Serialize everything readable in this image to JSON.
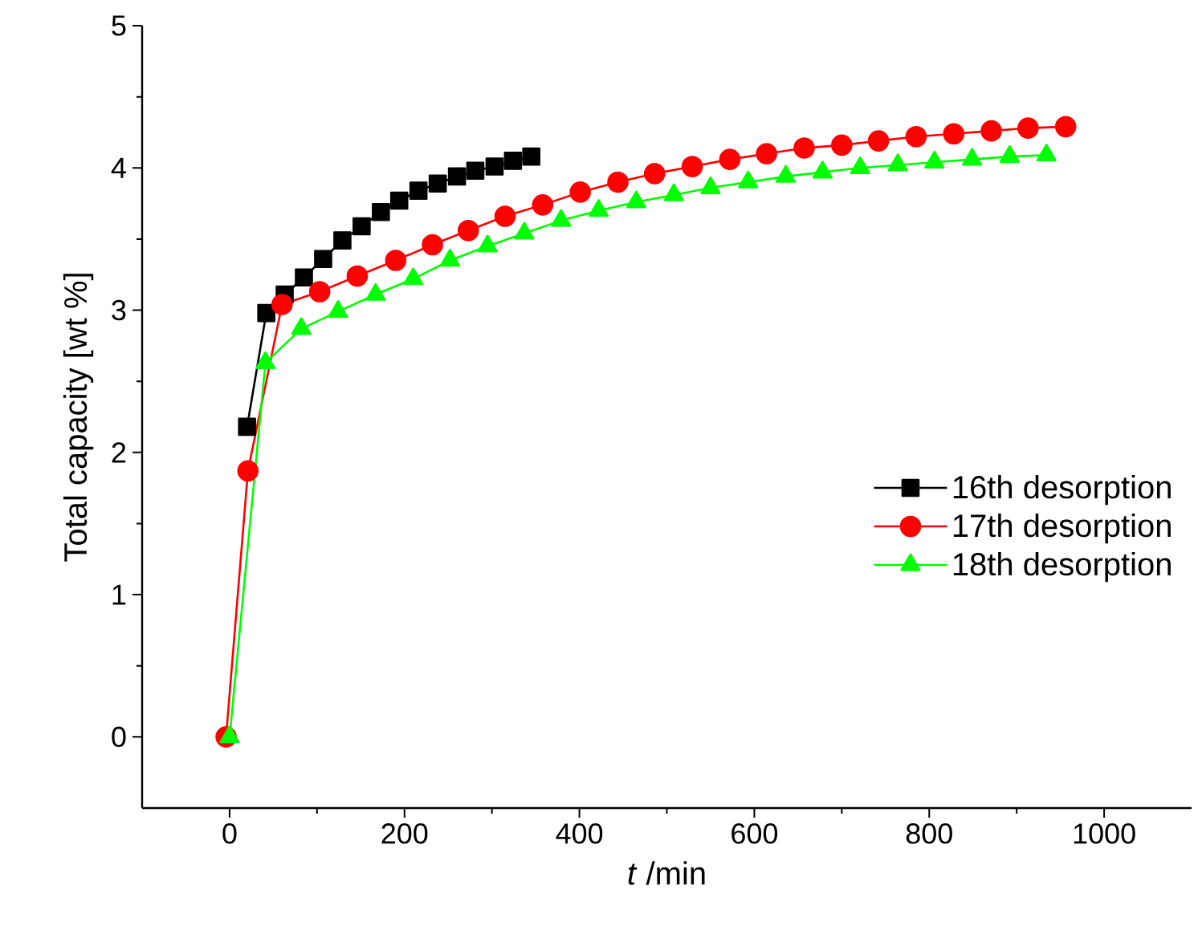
{
  "chart_data": {
    "type": "line",
    "xlabel": "*t* /min",
    "ylabel": "Total capacity [wt %]",
    "xlim": [
      -100,
      1100
    ],
    "ylim": [
      -0.5,
      5
    ],
    "xticks": [
      0,
      200,
      400,
      600,
      800,
      1000
    ],
    "yticks": [
      0,
      1,
      2,
      3,
      4,
      5
    ],
    "legend": "right",
    "line_style": "solid",
    "series": [
      {
        "name": "16th desorption",
        "color": "#000000",
        "marker": "square",
        "x": [
          20,
          42,
          63,
          85,
          107,
          129,
          151,
          173,
          194,
          216,
          238,
          260,
          281,
          303,
          324,
          345
        ],
        "values": [
          2.18,
          2.98,
          3.11,
          3.23,
          3.36,
          3.49,
          3.59,
          3.69,
          3.77,
          3.84,
          3.89,
          3.94,
          3.98,
          4.01,
          4.05,
          4.08
        ]
      },
      {
        "name": "17th desorption",
        "color": "#ff0000",
        "marker": "circle",
        "x": [
          -4,
          21,
          60,
          103,
          146,
          190,
          232,
          273,
          315,
          358,
          401,
          444,
          486,
          529,
          572,
          614,
          657,
          700,
          742,
          785,
          828,
          871,
          913,
          956
        ],
        "values": [
          0,
          1.87,
          3.04,
          3.13,
          3.24,
          3.35,
          3.46,
          3.56,
          3.66,
          3.74,
          3.83,
          3.9,
          3.96,
          4.01,
          4.06,
          4.1,
          4.14,
          4.16,
          4.19,
          4.22,
          4.24,
          4.26,
          4.28,
          4.29
        ]
      },
      {
        "name": "18th desorption",
        "color": "#00ff00",
        "marker": "triangle",
        "x": [
          0,
          41,
          82,
          124,
          167,
          210,
          252,
          295,
          337,
          379,
          422,
          465,
          508,
          550,
          593,
          636,
          678,
          721,
          764,
          806,
          849,
          892,
          934
        ],
        "values": [
          0,
          2.63,
          2.87,
          2.99,
          3.11,
          3.22,
          3.35,
          3.45,
          3.54,
          3.63,
          3.7,
          3.76,
          3.81,
          3.86,
          3.9,
          3.94,
          3.97,
          4.0,
          4.02,
          4.04,
          4.06,
          4.08,
          4.09
        ]
      }
    ]
  }
}
